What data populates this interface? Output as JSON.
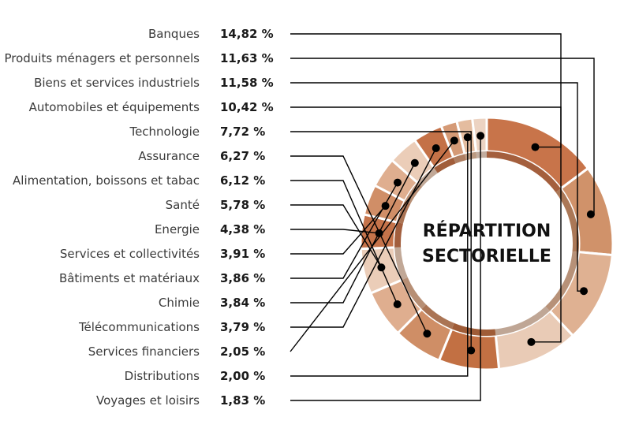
{
  "chart_data": {
    "type": "pie",
    "title_lines": [
      "RÉPARTITION",
      "SECTORIELLE"
    ],
    "categories": [
      "Banques",
      "Produits ménagers et personnels",
      "Biens et services industriels",
      "Automobiles et équipements",
      "Technologie",
      "Assurance",
      "Alimentation, boissons et tabac",
      "Santé",
      "Energie",
      "Services et collectivités",
      "Bâtiments et matériaux",
      "Chimie",
      "Télécommunications",
      "Services financiers",
      "Distributions",
      "Voyages et loisirs"
    ],
    "values": [
      14.82,
      11.63,
      11.58,
      10.42,
      7.72,
      6.27,
      6.12,
      5.78,
      4.38,
      3.91,
      3.86,
      3.84,
      3.79,
      2.05,
      2.0,
      1.83
    ],
    "value_labels": [
      "14,82 %",
      "11,63 %",
      "11,58 %",
      "10,42 %",
      "7,72 %",
      "6,27 %",
      "6,12 %",
      "5,78 %",
      "4,38 %",
      "3,91 %",
      "3,86 %",
      "3,84 %",
      "3,79 %",
      "2,05 %",
      "2,00 %",
      "1,83 %"
    ],
    "colors": [
      "#c8744a",
      "#d0926a",
      "#dfb192",
      "#e9cbb6",
      "#c27043",
      "#cf8e66",
      "#dfae8f",
      "#ebcdb8",
      "#c5734a",
      "#d08e67",
      "#dfae8f",
      "#ebcdb8",
      "#c47147",
      "#d59a76",
      "#e4bc9f",
      "#ecd3c2"
    ],
    "legend": "left"
  }
}
